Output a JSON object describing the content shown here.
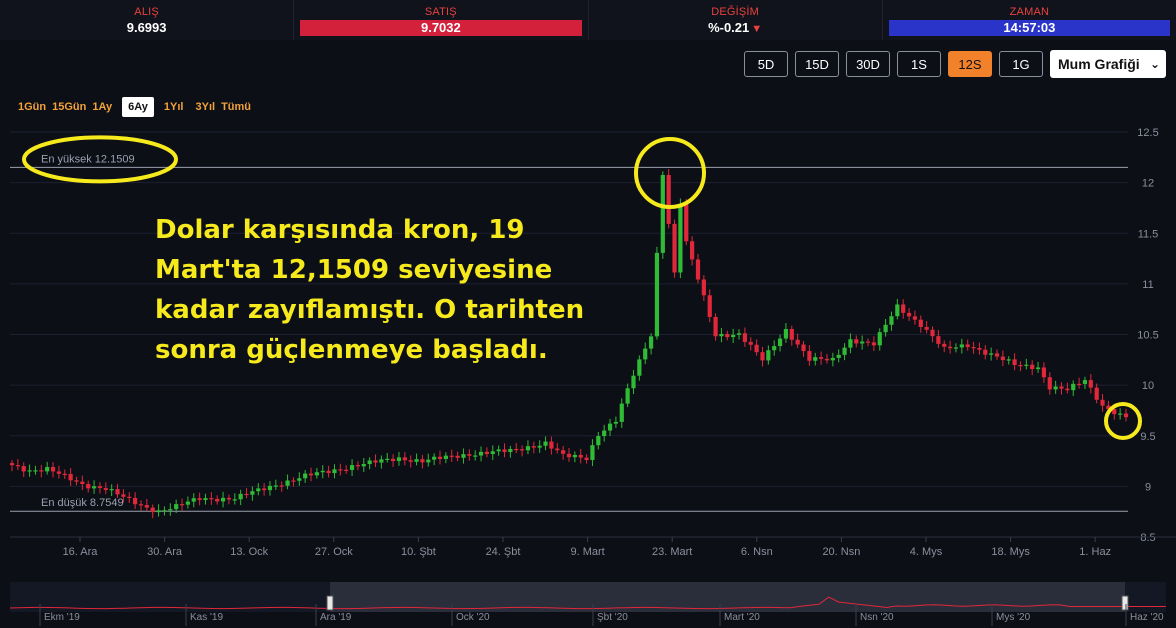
{
  "ticker": {
    "bid_label": "ALIŞ",
    "bid_value": "9.6993",
    "ask_label": "SATIŞ",
    "ask_value": "9.7032",
    "change_label": "DEĞİŞİM",
    "change_value": "%-0.21",
    "time_label": "ZAMAN",
    "time_value": "14:57:03"
  },
  "colors": {
    "up": "#2fbb35",
    "down": "#e0283a",
    "accent": "#f2812b",
    "annotation": "#f6ea1c",
    "grid": "#1c2030"
  },
  "periods": {
    "buttons": [
      "5D",
      "15D",
      "30D",
      "1S",
      "12S",
      "1G"
    ],
    "active": "12S",
    "chart_type": "Mum Grafiği"
  },
  "ranges": {
    "tabs": [
      "1Gün",
      "15Gün",
      "1Ay",
      "6Ay",
      "1Yıl",
      "3Yıl",
      "Tümü"
    ],
    "active": "6Ay"
  },
  "annotation": "Dolar karşısında kron, 19 Mart'ta 12,1509 seviyesine kadar zayıflamıştı. O tarihten sonra güçlenmeye başladı.",
  "navigator": {
    "labels": [
      "Ekm '19",
      "Kas '19",
      "Ara '19",
      "Ock '20",
      "Şbt '20",
      "Mart '20",
      "Nsn '20",
      "Mys '20",
      "Haz '20"
    ]
  },
  "chart_data": {
    "type": "line",
    "y_ticks": [
      "12.5",
      "12",
      "11.5",
      "11",
      "10.5",
      "10",
      "9.5",
      "9",
      "8.5"
    ],
    "ylim": [
      8.5,
      12.5
    ],
    "x_ticks": [
      "16. Ara",
      "30. Ara",
      "13. Ock",
      "27. Ock",
      "10. Şbt",
      "24. Şbt",
      "9. Mart",
      "23. Mart",
      "6. Nsn",
      "20. Nsn",
      "4. Mys",
      "18. Mys",
      "1. Haz"
    ],
    "high_label": "En yüksek 12.1509",
    "low_label": "En düşük 8.7549",
    "high_value": 12.1509,
    "low_value": 8.7549,
    "anchors": [
      [
        0,
        9.21
      ],
      [
        3,
        9.16
      ],
      [
        6,
        9.17
      ],
      [
        8,
        9.12
      ],
      [
        12,
        9.02
      ],
      [
        16,
        8.98
      ],
      [
        20,
        8.86
      ],
      [
        23,
        8.79
      ],
      [
        25,
        8.76
      ],
      [
        28,
        8.8
      ],
      [
        32,
        8.88
      ],
      [
        38,
        8.88
      ],
      [
        44,
        9.0
      ],
      [
        50,
        9.1
      ],
      [
        58,
        9.2
      ],
      [
        66,
        9.28
      ],
      [
        70,
        9.25
      ],
      [
        78,
        9.32
      ],
      [
        85,
        9.35
      ],
      [
        91,
        9.43
      ],
      [
        94,
        9.3
      ],
      [
        98,
        9.28
      ],
      [
        100,
        9.52
      ],
      [
        103,
        9.65
      ],
      [
        106,
        10.1
      ],
      [
        109,
        10.5
      ],
      [
        110,
        11.3
      ],
      [
        111,
        12.1
      ],
      [
        112,
        11.6
      ],
      [
        113,
        11.1
      ],
      [
        114,
        11.8
      ],
      [
        115,
        11.4
      ],
      [
        117,
        11.05
      ],
      [
        120,
        10.5
      ],
      [
        124,
        10.5
      ],
      [
        128,
        10.25
      ],
      [
        132,
        10.55
      ],
      [
        136,
        10.25
      ],
      [
        140,
        10.25
      ],
      [
        143,
        10.45
      ],
      [
        147,
        10.4
      ],
      [
        151,
        10.78
      ],
      [
        155,
        10.6
      ],
      [
        159,
        10.35
      ],
      [
        163,
        10.4
      ],
      [
        167,
        10.3
      ],
      [
        171,
        10.2
      ],
      [
        175,
        10.18
      ],
      [
        177,
        9.98
      ],
      [
        180,
        9.95
      ],
      [
        183,
        10.05
      ],
      [
        186,
        9.8
      ],
      [
        189,
        9.7
      ],
      [
        190,
        9.68
      ]
    ]
  }
}
